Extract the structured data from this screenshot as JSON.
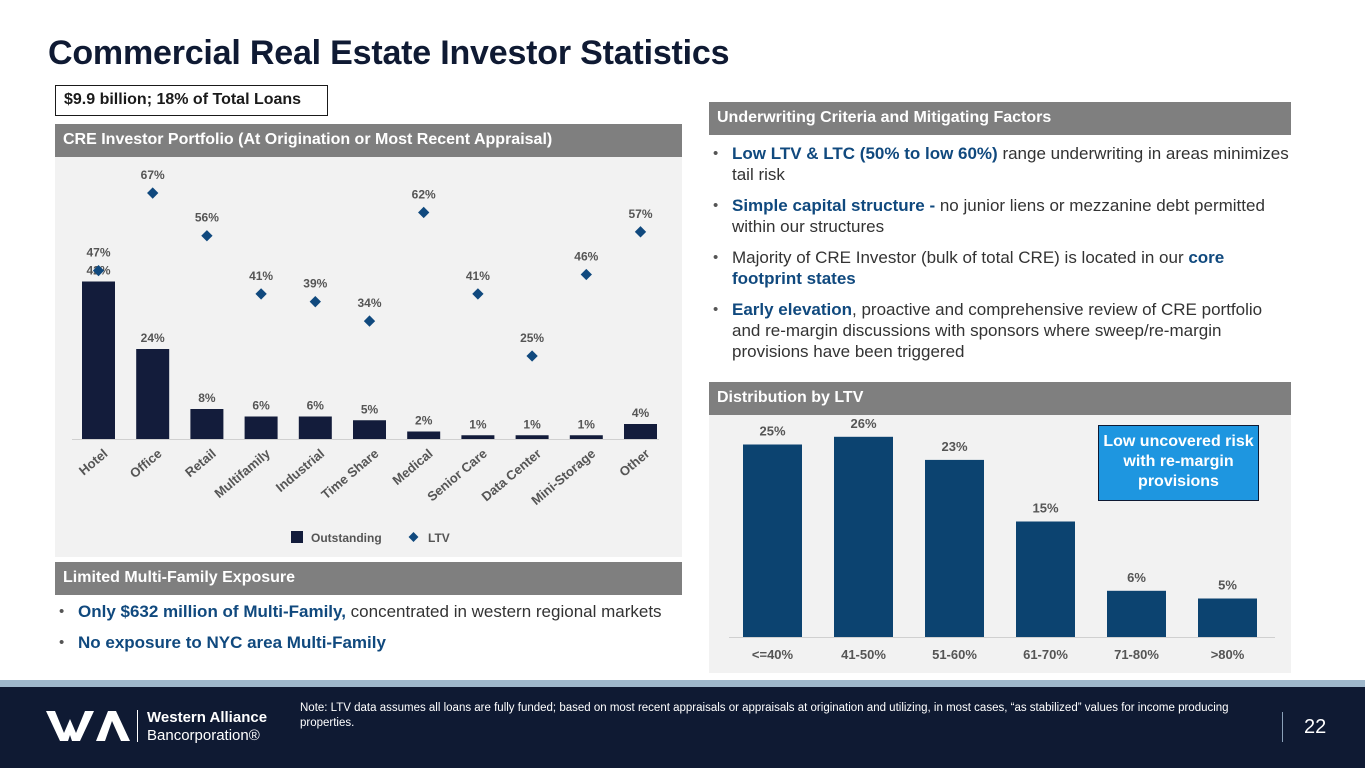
{
  "header": {
    "title": "Commercial Real Estate Investor Statistics",
    "callout": "$9.9 billion; 18% of Total Loans"
  },
  "left_panel": {
    "header": "CRE Investor Portfolio (At Origination or Most Recent Appraisal)",
    "legend": {
      "outstanding": "Outstanding",
      "ltv": "LTV"
    }
  },
  "multifamily": {
    "header": "Limited Multi-Family Exposure",
    "bullet1_hl": "Only $632 million of Multi-Family,",
    "bullet1_rest": " concentrated in western regional markets",
    "bullet2_hl": "No exposure to NYC area Multi-Family"
  },
  "underwriting": {
    "header": "Underwriting Criteria and Mitigating Factors",
    "b1_hl": "Low LTV & LTC (50% to low 60%)",
    "b1_rest": " range underwriting in areas minimizes tail risk",
    "b2_hl": "Simple capital structure -",
    "b2_rest": " no junior liens or mezzanine debt permitted within our structures",
    "b3_pre": "Majority of CRE Investor (bulk of total CRE) is located in our ",
    "b3_hl": "core footprint states",
    "b4_hl": "Early elevation",
    "b4_rest": ", proactive and comprehensive review of CRE portfolio and re-margin discussions with sponsors where sweep/re-margin provisions have been triggered"
  },
  "distribution": {
    "header": "Distribution by LTV",
    "callout": "Low uncovered risk with re-margin provisions"
  },
  "footer": {
    "note": "Note: LTV data assumes all loans are fully funded; based on most recent appraisals or appraisals at origination and utilizing, in most cases, “as stabilized” values for income producing properties.",
    "page": "22",
    "logo_line1": "Western Alliance",
    "logo_line2": "Bancorporation®"
  },
  "colors": {
    "navy": "#131c3b",
    "ltv_marker": "#10497e",
    "dist_bar": "#0c4370",
    "callout_blue": "#1e96e0"
  },
  "chart_data": [
    {
      "type": "bar",
      "categories": [
        "Hotel",
        "Office",
        "Retail",
        "Multifamily",
        "Industrial",
        "Time Share",
        "Medical",
        "Senior Care",
        "Data Center",
        "Mini-Storage",
        "Other"
      ],
      "series": [
        {
          "name": "Outstanding",
          "type": "bar",
          "values": [
            42,
            24,
            8,
            6,
            6,
            5,
            2,
            1,
            1,
            1,
            4
          ],
          "labels": [
            "42%",
            "24%",
            "8%",
            "6%",
            "6%",
            "5%",
            "2%",
            "1%",
            "1%",
            "1%",
            "4%"
          ]
        },
        {
          "name": "LTV",
          "type": "scatter",
          "values": [
            47,
            67,
            56,
            41,
            39,
            34,
            62,
            41,
            25,
            46,
            57
          ],
          "labels": [
            "47%",
            "67%",
            "56%",
            "41%",
            "39%",
            "34%",
            "62%",
            "41%",
            "25%",
            "46%",
            "57%"
          ]
        }
      ],
      "legend": "bottom"
    },
    {
      "type": "bar",
      "categories": [
        "<=40%",
        "41-50%",
        "51-60%",
        "61-70%",
        "71-80%",
        ">80%"
      ],
      "values": [
        25,
        26,
        23,
        15,
        6,
        5
      ],
      "labels": [
        "25%",
        "26%",
        "23%",
        "15%",
        "6%",
        "5%"
      ]
    }
  ]
}
